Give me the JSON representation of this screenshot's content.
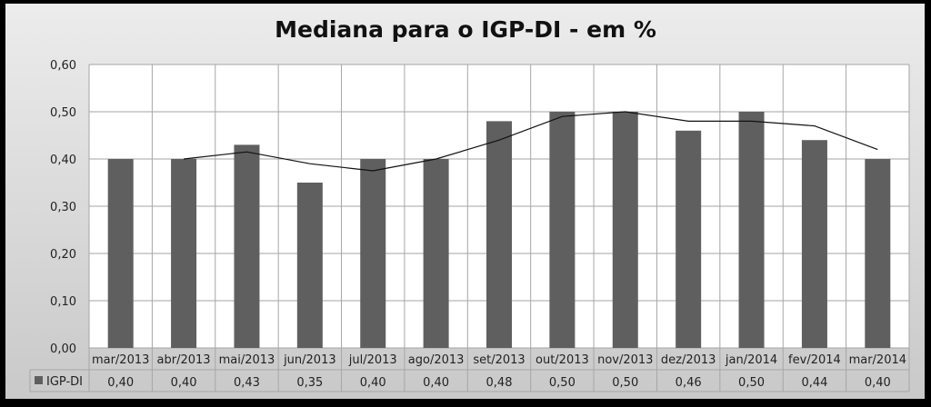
{
  "chart_data": {
    "type": "bar",
    "title": "Mediana para o IGP-DI - em %",
    "categories": [
      "mar/2013",
      "abr/2013",
      "mai/2013",
      "jun/2013",
      "jul/2013",
      "ago/2013",
      "set/2013",
      "out/2013",
      "nov/2013",
      "dez/2013",
      "jan/2014",
      "fev/2014",
      "mar/2014"
    ],
    "series": [
      {
        "name": "IGP-DI",
        "values": [
          0.4,
          0.4,
          0.43,
          0.35,
          0.4,
          0.4,
          0.48,
          0.5,
          0.5,
          0.46,
          0.5,
          0.44,
          0.4
        ],
        "labels": [
          "0,40",
          "0,40",
          "0,43",
          "0,35",
          "0,40",
          "0,40",
          "0,48",
          "0,50",
          "0,50",
          "0,46",
          "0,50",
          "0,44",
          "0,40"
        ],
        "color": "#5f5f5f"
      }
    ],
    "trendline": {
      "type": "moving-average",
      "period": 2,
      "color": "#111111"
    },
    "ylim": [
      0,
      0.6
    ],
    "yticks": [
      "0,00",
      "0,10",
      "0,20",
      "0,30",
      "0,40",
      "0,50",
      "0,60"
    ],
    "grid": true,
    "legend": "data-table",
    "data_table": true
  }
}
